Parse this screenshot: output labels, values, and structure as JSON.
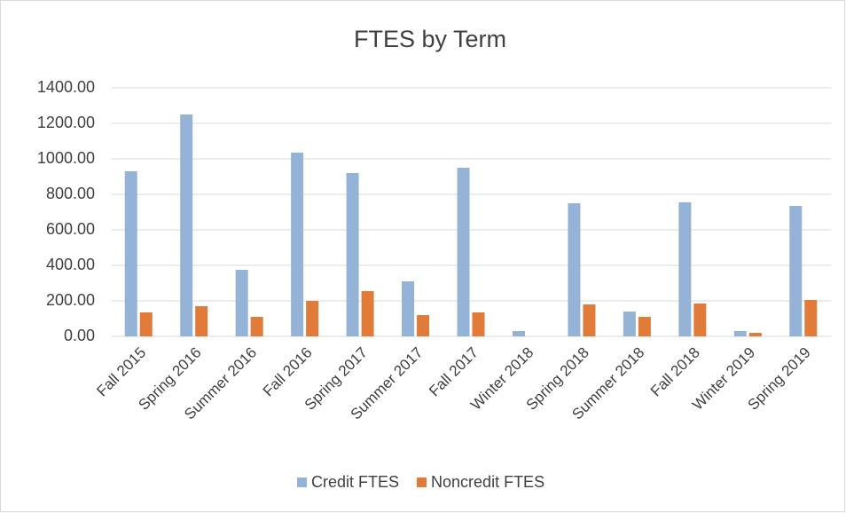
{
  "chart_data": {
    "type": "bar",
    "title": "FTES by Term",
    "categories": [
      "Fall 2015",
      "Spring 2016",
      "Summer 2016",
      "Fall 2016",
      "Spring 2017",
      "Summer 2017",
      "Fall 2017",
      "Winter 2018",
      "Spring 2018",
      "Summer 2018",
      "Fall 2018",
      "Winter 2019",
      "Spring 2019"
    ],
    "series": [
      {
        "name": "Credit FTES",
        "color": "#95b3d7",
        "values": [
          930,
          1250,
          375,
          1035,
          920,
          310,
          950,
          30,
          750,
          140,
          755,
          30,
          735
        ]
      },
      {
        "name": "Noncredit FTES",
        "color": "#e07b39",
        "values": [
          135,
          170,
          110,
          200,
          255,
          120,
          135,
          0,
          180,
          110,
          185,
          20,
          205
        ]
      }
    ],
    "ylim": [
      0,
      1400
    ],
    "yticks": [
      {
        "value": 0,
        "label": "0.00"
      },
      {
        "value": 200,
        "label": "200.00"
      },
      {
        "value": 400,
        "label": "400.00"
      },
      {
        "value": 600,
        "label": "600.00"
      },
      {
        "value": 800,
        "label": "800.00"
      },
      {
        "value": 1000,
        "label": "1000.00"
      },
      {
        "value": 1200,
        "label": "1200.00"
      },
      {
        "value": 1400,
        "label": "1400.00"
      }
    ],
    "grid": true,
    "legend": "bottom"
  }
}
